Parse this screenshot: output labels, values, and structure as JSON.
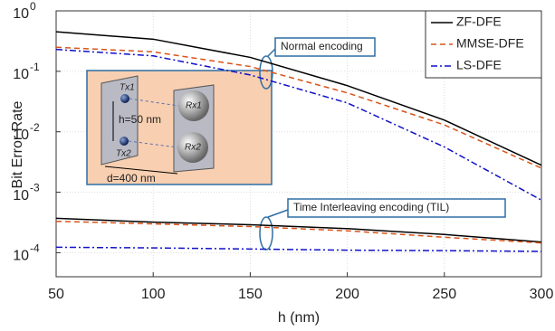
{
  "chart_data": {
    "type": "line",
    "x_label": "h (nm)",
    "y_label": "Bit Error Rate",
    "x": [
      50,
      100,
      150,
      200,
      250,
      300
    ],
    "xlim": [
      50,
      300
    ],
    "xticks": [
      50,
      100,
      150,
      200,
      250,
      300
    ],
    "ylim": [
      4e-05,
      1
    ],
    "ylog": true,
    "grid": true,
    "legend": "upper right",
    "yticks": [
      {
        "value": 0.0001,
        "label": "10",
        "exponent": "-4"
      },
      {
        "value": 0.001,
        "label": "10",
        "exponent": "-3"
      },
      {
        "value": 0.01,
        "label": "10",
        "exponent": "-2"
      },
      {
        "value": 0.1,
        "label": "10",
        "exponent": "-1"
      },
      {
        "value": 1,
        "label": "10",
        "exponent": "0"
      }
    ],
    "series": [
      {
        "name": "ZF-DFE",
        "color": "#000000",
        "dash": "solid",
        "values": [
          0.45,
          0.34,
          0.17,
          0.058,
          0.0156,
          0.0028
        ],
        "til_values": [
          0.00037,
          0.00032,
          0.00029,
          0.00025,
          0.0002,
          0.00015
        ]
      },
      {
        "name": "MMSE-DFE",
        "color": "#d95319",
        "dash": "dashed",
        "values": [
          0.25,
          0.21,
          0.12,
          0.044,
          0.013,
          0.0025
        ],
        "til_values": [
          0.00033,
          0.0003,
          0.00027,
          0.00023,
          0.00018,
          0.000145
        ]
      },
      {
        "name": "LS-DFE",
        "color": "#1010c8",
        "dash": "dashdot",
        "values": [
          0.23,
          0.18,
          0.087,
          0.03,
          0.0056,
          0.00074
        ],
        "til_values": [
          0.000123,
          0.00012,
          0.000115,
          0.00011,
          0.000108,
          0.000105
        ]
      }
    ],
    "annotations": [
      "Normal encoding",
      "Time Interleaving encoding  (TIL)"
    ],
    "inset": {
      "tx1": "Tx1",
      "tx2": "Tx2",
      "rx1": "Rx1",
      "rx2": "Rx2",
      "h": "h=50 nm",
      "d": "d=400 nm"
    }
  }
}
